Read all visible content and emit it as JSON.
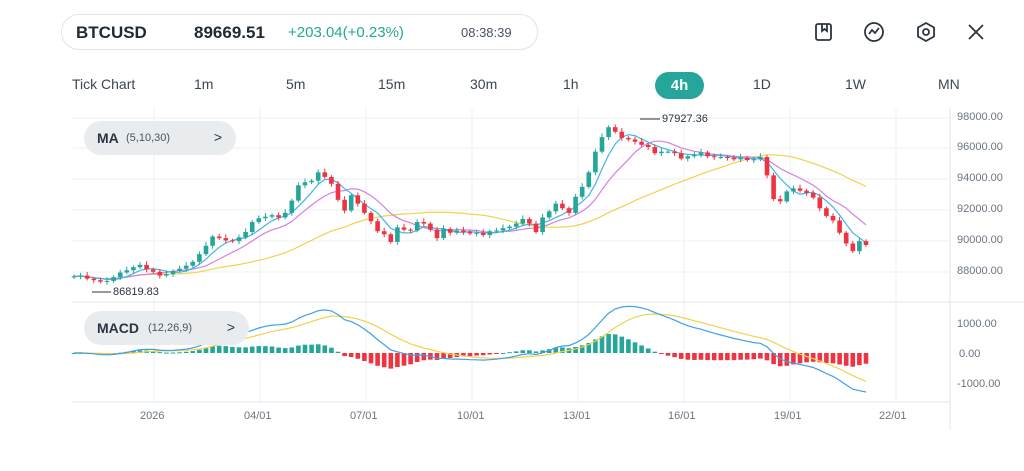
{
  "header": {
    "symbol": "BTCUSD",
    "price": "89669.51",
    "change": "+203.04(+0.23%)",
    "time": "08:38:39",
    "icons": [
      "bookmark-icon",
      "indicator-icon",
      "settings-icon",
      "close-icon"
    ]
  },
  "timeframes": [
    {
      "label": "Tick Chart",
      "active": false
    },
    {
      "label": "1m",
      "active": false
    },
    {
      "label": "5m",
      "active": false
    },
    {
      "label": "15m",
      "active": false
    },
    {
      "label": "30m",
      "active": false
    },
    {
      "label": "1h",
      "active": false
    },
    {
      "label": "4h",
      "active": true
    },
    {
      "label": "1D",
      "active": false
    },
    {
      "label": "1W",
      "active": false
    },
    {
      "label": "MN",
      "active": false
    }
  ],
  "indicators": {
    "ma": {
      "name": "MA",
      "params": "(5,10,30)",
      "chevron": ">"
    },
    "macd": {
      "name": "MACD",
      "params": "(12,26,9)",
      "chevron": ">"
    }
  },
  "price_axis": [
    "98000.00",
    "96000.00",
    "94000.00",
    "92000.00",
    "90000.00",
    "88000.00"
  ],
  "macd_axis": [
    "1000.00",
    "0.00",
    "-1000.00"
  ],
  "date_axis": [
    "2026",
    "04/01",
    "07/01",
    "10/01",
    "13/01",
    "16/01",
    "19/01",
    "22/01"
  ],
  "markers": {
    "high": "97927.36",
    "low": "86819.83"
  },
  "colors": {
    "up": "#26a69a",
    "down": "#ef3340",
    "ma5": "#3fb5e8",
    "ma10": "#d57fe0",
    "ma30": "#f2d24b",
    "dif": "#3fa0e8",
    "dea": "#f2d24b"
  },
  "chart_data": {
    "type": "candlestick",
    "timeframe": "4h",
    "x_range": [
      "2026",
      "22/01"
    ],
    "price_range": [
      88000,
      98000
    ],
    "high": 97927.36,
    "low": 86819.83,
    "last": 89669.51,
    "series": [
      {
        "name": "MA",
        "params": [
          5,
          10,
          30
        ]
      },
      {
        "name": "MACD",
        "params": [
          12,
          26,
          9
        ]
      }
    ],
    "close": [
      87650,
      87700,
      87500,
      87400,
      87300,
      87350,
      87600,
      87900,
      88050,
      88250,
      88400,
      88100,
      87950,
      87700,
      87800,
      88000,
      88150,
      88350,
      88600,
      89100,
      89650,
      90250,
      90150,
      90000,
      89950,
      90200,
      90550,
      91200,
      91450,
      91550,
      91650,
      91500,
      91800,
      92600,
      93600,
      93800,
      93900,
      94450,
      94150,
      93700,
      92650,
      91950,
      92950,
      92400,
      91800,
      91250,
      90600,
      90400,
      89900,
      90850,
      90700,
      90650,
      91200,
      91100,
      90700,
      90150,
      90750,
      90500,
      90650,
      90550,
      90450,
      90500,
      90350,
      90600,
      90650,
      90800,
      90900,
      91100,
      91400,
      91100,
      90550,
      91500,
      91900,
      92400,
      92100,
      91800,
      92850,
      93500,
      94450,
      95800,
      96750,
      97400,
      97100,
      96700,
      96600,
      96450,
      96250,
      96100,
      95700,
      95800,
      95800,
      95700,
      95350,
      95500,
      95600,
      95750,
      95500,
      95450,
      95450,
      95400,
      95300,
      95400,
      95250,
      95300,
      95450,
      94250,
      92700,
      92550,
      93200,
      93400,
      93250,
      93100,
      92800,
      92100,
      91600,
      91300,
      90500,
      89800,
      89300,
      89950,
      89700
    ]
  }
}
